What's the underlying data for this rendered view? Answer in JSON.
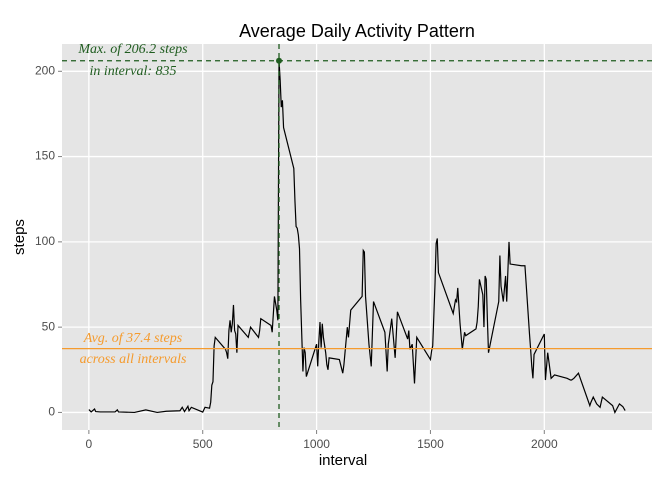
{
  "chart_data": {
    "type": "line",
    "title": "Average Daily Activity Pattern",
    "x_label": "interval",
    "y_label": "steps",
    "x": [
      0,
      10,
      25,
      30,
      50,
      100,
      115,
      125,
      130,
      200,
      250,
      300,
      340,
      400,
      410,
      420,
      435,
      440,
      450,
      500,
      510,
      530,
      535,
      540,
      545,
      550,
      555,
      600,
      605,
      610,
      615,
      620,
      625,
      630,
      635,
      640,
      645,
      650,
      655,
      700,
      710,
      745,
      750,
      755,
      800,
      805,
      815,
      825,
      830,
      835,
      840,
      845,
      850,
      855,
      900,
      905,
      910,
      915,
      920,
      925,
      930,
      935,
      940,
      945,
      950,
      955,
      1000,
      1005,
      1010,
      1015,
      1020,
      1025,
      1030,
      1040,
      1045,
      1050,
      1055,
      1100,
      1115,
      1120,
      1135,
      1140,
      1150,
      1200,
      1205,
      1210,
      1215,
      1230,
      1240,
      1250,
      1300,
      1310,
      1315,
      1330,
      1345,
      1355,
      1400,
      1405,
      1410,
      1420,
      1430,
      1440,
      1500,
      1505,
      1510,
      1515,
      1520,
      1525,
      1530,
      1535,
      1600,
      1610,
      1615,
      1620,
      1630,
      1640,
      1650,
      1655,
      1700,
      1705,
      1710,
      1715,
      1730,
      1735,
      1740,
      1745,
      1750,
      1755,
      1800,
      1805,
      1810,
      1820,
      1830,
      1835,
      1845,
      1850,
      1900,
      1915,
      1935,
      1940,
      1945,
      1950,
      1955,
      2000,
      2005,
      2015,
      2030,
      2045,
      2100,
      2115,
      2120,
      2130,
      2150,
      2200,
      2205,
      2215,
      2230,
      2245,
      2255,
      2300,
      2310,
      2330,
      2345,
      2355
    ],
    "series": [
      {
        "name": "steps",
        "color": "#000000",
        "values": [
          1.7,
          0.3,
          2,
          0.5,
          0.3,
          0.3,
          0.3,
          1.5,
          0.3,
          0,
          1.5,
          0,
          0.7,
          1,
          3,
          0.5,
          3.6,
          1,
          3,
          0.2,
          3,
          2.5,
          6,
          16,
          18,
          39,
          44,
          37,
          35,
          31.5,
          48,
          54,
          47,
          52,
          63,
          48,
          46,
          35,
          51,
          44,
          50,
          44,
          48,
          55,
          51,
          47,
          68,
          60,
          54,
          206.2,
          195,
          179,
          183,
          167,
          143,
          124,
          109,
          108,
          104,
          96,
          66,
          45,
          24,
          38,
          35,
          21,
          40,
          27,
          42,
          53,
          38,
          52,
          44,
          35,
          28,
          25,
          32,
          31,
          23,
          28,
          50,
          44,
          60,
          68,
          95,
          94,
          68,
          40,
          27,
          65,
          47,
          24,
          40,
          55,
          32,
          59,
          43,
          48,
          37,
          40,
          17,
          44,
          31,
          36,
          39,
          57,
          75,
          99,
          102,
          82,
          58,
          66,
          65,
          73,
          52,
          37,
          47,
          45,
          49,
          53,
          62,
          78,
          69,
          50,
          80,
          78,
          55,
          35,
          65,
          92,
          74,
          65,
          80,
          65,
          100,
          87,
          86,
          86,
          46,
          37,
          27,
          20,
          34,
          46,
          19,
          35,
          20,
          22,
          20,
          19,
          19,
          20,
          23,
          4,
          6,
          9,
          5,
          3,
          9,
          4,
          0,
          5,
          3.4,
          1.1
        ]
      }
    ],
    "xlim": [
      -118,
      2473
    ],
    "ylim": [
      -10.3,
      216
    ],
    "xticks": [
      0,
      500,
      1000,
      1500,
      2000
    ],
    "yticks": [
      0,
      50,
      100,
      150,
      200
    ],
    "grid": true,
    "hlines": [
      {
        "value": 37.4,
        "color": "#f59b2e"
      },
      {
        "value": 206.2,
        "color": "#1f5c1f"
      }
    ],
    "vlines": [
      {
        "value": 835,
        "color": "#1f5c1f"
      }
    ],
    "annotations": [
      {
        "text": "Max. of 206.2 steps",
        "color": "#1f5c1f"
      },
      {
        "text": "in interval: 835",
        "color": "#1f5c1f"
      },
      {
        "text": "Avg. of 37.4 steps",
        "color": "#f59b2e"
      },
      {
        "text": "across all intervals",
        "color": "#f59b2e"
      }
    ]
  }
}
